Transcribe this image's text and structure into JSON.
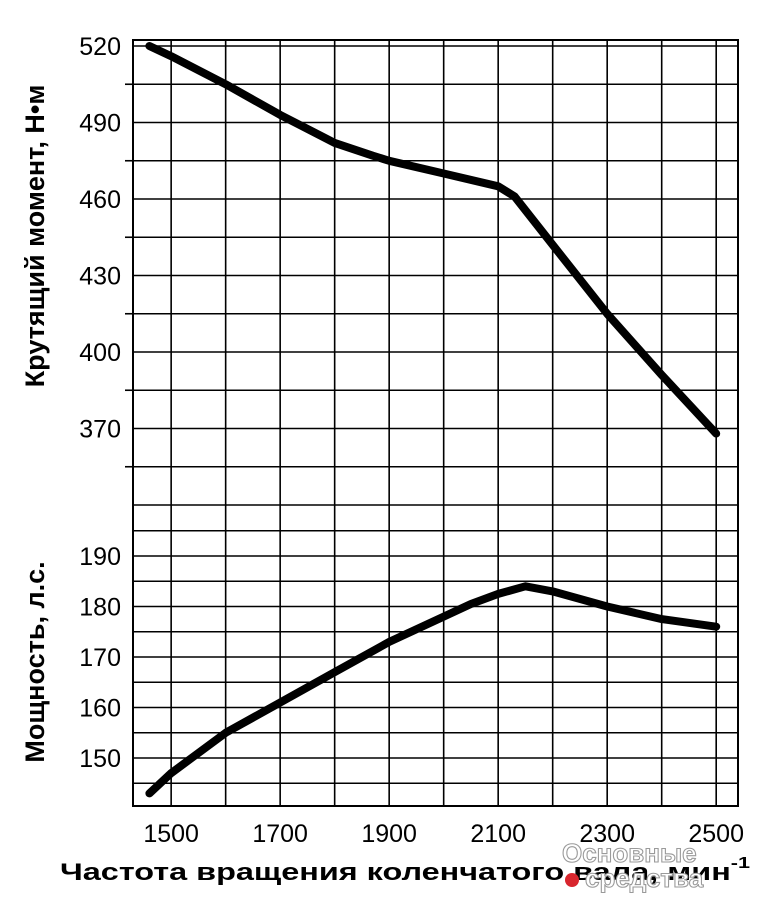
{
  "chart_data": [
    {
      "type": "line",
      "ylabel": "Крутящий момент, Н•м",
      "x": [
        1460,
        1500,
        1600,
        1700,
        1800,
        1870,
        1900,
        2000,
        2100,
        2130,
        2200,
        2300,
        2400,
        2500
      ],
      "xlim": [
        1430,
        2540
      ],
      "ylim": [
        340,
        520
      ],
      "y_ticks": [
        520,
        490,
        460,
        430,
        400,
        370
      ],
      "grid": true,
      "series": [
        {
          "values": [
            520,
            516,
            505,
            493,
            482,
            477,
            475,
            470,
            465,
            461,
            442,
            415,
            391,
            368
          ]
        }
      ]
    },
    {
      "type": "line",
      "ylabel": "Мощность, л.с.",
      "x": [
        1460,
        1500,
        1600,
        1700,
        1800,
        1900,
        2000,
        2050,
        2100,
        2150,
        2200,
        2300,
        2400,
        2500
      ],
      "xlim": [
        1430,
        2540
      ],
      "ylim": [
        140,
        195
      ],
      "y_ticks": [
        190,
        180,
        170,
        160,
        150
      ],
      "x_ticks": [
        1500,
        1700,
        1900,
        2100,
        2300,
        2500
      ],
      "xlabel": "Частота вращения коленчатого вала, мин-1",
      "grid": true,
      "series": [
        {
          "values": [
            143,
            147,
            155,
            161,
            167,
            173,
            178,
            180.5,
            182.5,
            184,
            183,
            180,
            177.5,
            176
          ]
        }
      ]
    }
  ],
  "watermark": {
    "line1": "Основные",
    "line2": "средства"
  },
  "colors": {
    "line": "#000000",
    "grid": "#000000",
    "background": "#ffffff",
    "watermark_dot": "#d8262e"
  }
}
